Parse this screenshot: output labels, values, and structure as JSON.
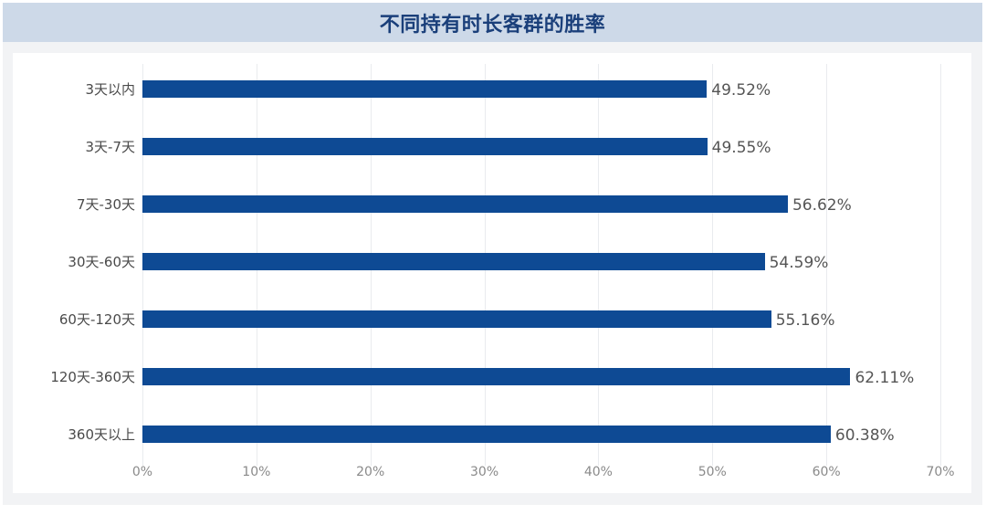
{
  "title": "不同持有时长客群的胜率",
  "colors": {
    "bar": "#0e4a94",
    "banner": "#cdd9e8",
    "title": "#1a3f7a"
  },
  "chart_data": {
    "type": "bar",
    "orientation": "horizontal",
    "title": "不同持有时长客群的胜率",
    "categories": [
      "3天以内",
      "3天-7天",
      "7天-30天",
      "30天-60天",
      "60天-120天",
      "120天-360天",
      "360天以上"
    ],
    "values": [
      49.52,
      49.55,
      56.62,
      54.59,
      55.16,
      62.11,
      60.38
    ],
    "value_labels": [
      "49.52%",
      "49.55%",
      "56.62%",
      "54.59%",
      "55.16%",
      "62.11%",
      "60.38%"
    ],
    "xlabel": "",
    "ylabel": "",
    "xlim": [
      0,
      70
    ],
    "x_ticks": [
      "0%",
      "10%",
      "20%",
      "30%",
      "40%",
      "50%",
      "60%",
      "70%"
    ],
    "grid": "vertical",
    "legend": "none"
  }
}
